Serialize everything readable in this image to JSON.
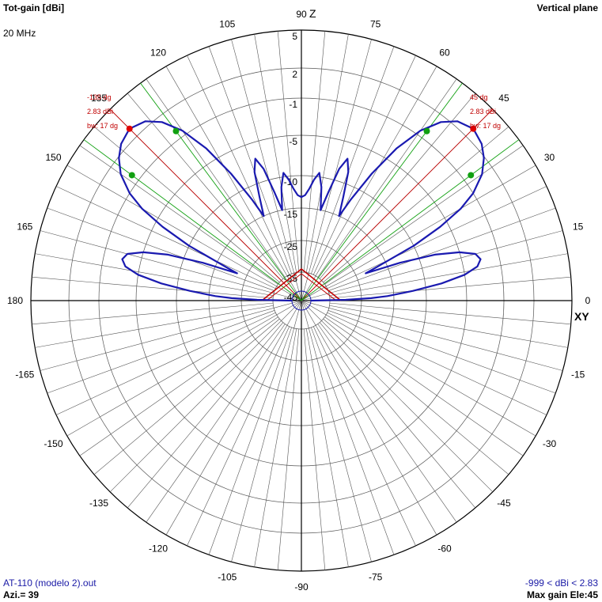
{
  "header": {
    "title": "Tot-gain [dBi]",
    "frequency": "20 MHz",
    "plane": "Vertical plane"
  },
  "footer": {
    "file": "AT-110 (modelo 2).out",
    "azimuth": "Azi.= 39",
    "range": "-999 < dBi < 2.83",
    "max_gain": "Max gain Ele:45"
  },
  "axis_names": {
    "z": "Z",
    "xy": "XY"
  },
  "chart_data": {
    "type": "polar-line",
    "angle_unit": "deg",
    "radial_unit": "dBi",
    "angle_labels": [
      0,
      15,
      30,
      45,
      60,
      75,
      90,
      105,
      120,
      135,
      150,
      165,
      180,
      -165,
      -150,
      -135,
      -120,
      -105,
      -90,
      -75,
      -60,
      -45,
      -30,
      -15
    ],
    "radial_ticks": [
      5,
      2,
      -1,
      -5,
      -10,
      -15,
      -25,
      -35,
      -45
    ],
    "radial_tick_text": [
      "5",
      "2",
      "-1",
      "-5",
      "-10",
      "-15",
      "-25",
      "-35",
      "-45"
    ],
    "series": [
      {
        "color": "#1a1ab0",
        "points": [
          [
            0,
            -45
          ],
          [
            1,
            -30
          ],
          [
            2,
            -22
          ],
          [
            3,
            -17
          ],
          [
            5,
            -12
          ],
          [
            7,
            -8
          ],
          [
            9,
            -5
          ],
          [
            11,
            -3.5
          ],
          [
            13,
            -3
          ],
          [
            15,
            -3.4
          ],
          [
            17,
            -5
          ],
          [
            19,
            -8
          ],
          [
            21,
            -13
          ],
          [
            23,
            -22
          ],
          [
            24,
            -18
          ],
          [
            26,
            -10
          ],
          [
            28,
            -6
          ],
          [
            30,
            -3
          ],
          [
            32,
            -1
          ],
          [
            35,
            0.8
          ],
          [
            38,
            1.9
          ],
          [
            41,
            2.5
          ],
          [
            45,
            2.83
          ],
          [
            49,
            2.4
          ],
          [
            52,
            1.4
          ],
          [
            55,
            -0.5
          ],
          [
            58,
            -3.5
          ],
          [
            61,
            -7.5
          ],
          [
            64,
            -12
          ],
          [
            66,
            -15
          ],
          [
            68,
            -12
          ],
          [
            70,
            -8.5
          ],
          [
            72,
            -7
          ],
          [
            74,
            -8.5
          ],
          [
            76,
            -12
          ],
          [
            78,
            -15
          ],
          [
            80,
            -11.5
          ],
          [
            82,
            -9.5
          ],
          [
            84,
            -10.5
          ],
          [
            86,
            -12
          ],
          [
            88,
            -13
          ],
          [
            90,
            -13.3
          ],
          [
            92,
            -13
          ],
          [
            94,
            -12
          ],
          [
            96,
            -10.5
          ],
          [
            98,
            -9.5
          ],
          [
            100,
            -11.5
          ],
          [
            102,
            -15
          ],
          [
            104,
            -12
          ],
          [
            106,
            -8.5
          ],
          [
            108,
            -7
          ],
          [
            110,
            -8.5
          ],
          [
            112,
            -12
          ],
          [
            114,
            -15
          ],
          [
            116,
            -12
          ],
          [
            119,
            -7.5
          ],
          [
            122,
            -3.5
          ],
          [
            125,
            -0.5
          ],
          [
            128,
            1.4
          ],
          [
            131,
            2.4
          ],
          [
            135,
            2.83
          ],
          [
            139,
            2.5
          ],
          [
            142,
            1.9
          ],
          [
            145,
            0.8
          ],
          [
            148,
            -1
          ],
          [
            150,
            -3
          ],
          [
            152,
            -6
          ],
          [
            154,
            -10
          ],
          [
            156,
            -18
          ],
          [
            157,
            -22
          ],
          [
            159,
            -13
          ],
          [
            161,
            -8
          ],
          [
            163,
            -5
          ],
          [
            165,
            -3.4
          ],
          [
            167,
            -3
          ],
          [
            169,
            -3.5
          ],
          [
            171,
            -5
          ],
          [
            173,
            -8
          ],
          [
            175,
            -12
          ],
          [
            177,
            -17
          ],
          [
            178,
            -22
          ],
          [
            179,
            -30
          ],
          [
            180,
            -45
          ]
        ]
      }
    ],
    "beam_markers": [
      {
        "angle": -135,
        "lines": [
          "-135 dg",
          "2.83 dBi",
          "bw: 17 dg"
        ],
        "max_angle": 135,
        "max_gain": 2.83,
        "half_power_angles": [
          126.5,
          143.5
        ],
        "half_power_gain": -0.17
      },
      {
        "angle": 45,
        "lines": [
          "45 dg",
          "2.83 dBi",
          "bw: 17 dg"
        ],
        "max_angle": 45,
        "max_gain": 2.83,
        "half_power_angles": [
          36.5,
          53.5
        ],
        "half_power_gain": -0.17
      }
    ],
    "colors": {
      "trace": "#1a1ab0",
      "grid": "#555555",
      "marker_max": "#e00000",
      "marker_bw": "#10a010",
      "beam_line": "#c00000",
      "bw_line": "#10a010",
      "annotation": "#c00000"
    }
  }
}
